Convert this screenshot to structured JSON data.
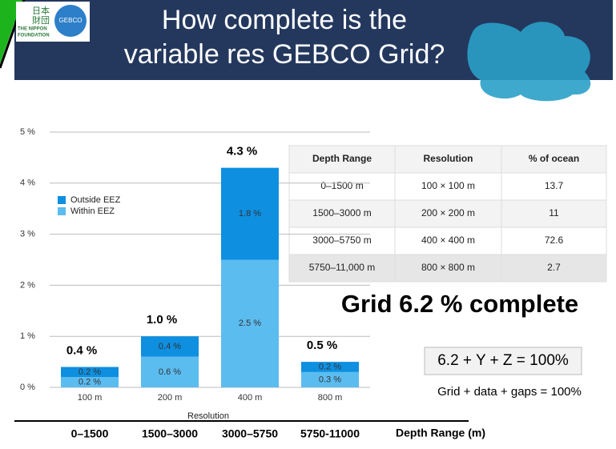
{
  "header": {
    "title": [
      "How complete is the",
      "variable res GEBCO Grid?"
    ],
    "logo_left": [
      "日本",
      "財団",
      "THE NIPPON",
      "FOUNDATION"
    ],
    "logo_right": "GEBCO"
  },
  "chart_data": {
    "type": "bar",
    "stacked": true,
    "categories": [
      "100 m",
      "200 m",
      "400 m",
      "800 m"
    ],
    "series": [
      {
        "name": "Within EEZ",
        "color": "#5bbcf0",
        "values": [
          0.2,
          0.6,
          2.5,
          0.3
        ],
        "value_labels": [
          "0.2 %",
          "0.6 %",
          "2.5 %",
          "0.3 %"
        ]
      },
      {
        "name": "Outside EEZ",
        "color": "#0e8fe0",
        "values": [
          0.2,
          0.4,
          1.8,
          0.2
        ],
        "value_labels": [
          "0.2 %",
          "0.4 %",
          "1.8 %",
          "0.2 %"
        ]
      }
    ],
    "totals": [
      0.4,
      1.0,
      4.3,
      0.5
    ],
    "total_labels": [
      "0.4 %",
      "1.0 %",
      "4.3 %",
      "0.5 %"
    ],
    "ylim": [
      0,
      5
    ],
    "yticks": [
      {
        "value": 0,
        "label": "0 %"
      },
      {
        "value": 1,
        "label": "1 %"
      },
      {
        "value": 2,
        "label": "2 %"
      },
      {
        "value": 3,
        "label": "3 %"
      },
      {
        "value": 4,
        "label": "4 %"
      },
      {
        "value": 5,
        "label": "5 %"
      }
    ],
    "xlabel": "Resolution",
    "grid": true,
    "legend": "upper left",
    "depth_ranges": [
      "0–1500",
      "1500–3000",
      "3000–5750",
      "5750-11000"
    ],
    "depth_label": "Depth Range (m)"
  },
  "table": {
    "header": [
      "Depth Range",
      "Resolution",
      "% of ocean"
    ],
    "rows": [
      [
        "0–1500 m",
        "100 × 100 m",
        13.7
      ],
      [
        "1500–3000 m",
        "200 × 200 m",
        11
      ],
      [
        "3000–5750 m",
        "400 × 400 m",
        72.6
      ],
      [
        "5750–11,000 m",
        "800 × 800 m",
        2.7
      ]
    ]
  },
  "summary": {
    "headline": "Grid 6.2 % complete",
    "equation": "6.2 + Y + Z = 100%",
    "caption": "Grid + data + gaps = 100%"
  }
}
